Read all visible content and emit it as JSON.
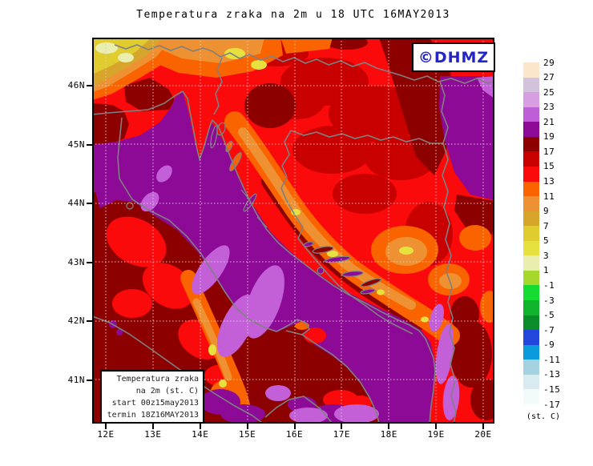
{
  "title": "Temperatura zraka na 2m u 18 UTC 16MAY2013",
  "logo": {
    "text": "©DHMZ",
    "color": "#2424CC"
  },
  "legend_box": {
    "lines": [
      "Temperatura zraka",
      "na 2m (st. C)",
      "start 00z15may2013",
      "termin 18Z16MAY2013"
    ]
  },
  "axes": {
    "lat_ticks": [
      "46N",
      "45N",
      "44N",
      "43N",
      "42N",
      "41N"
    ],
    "lon_ticks": [
      "12E",
      "13E",
      "14E",
      "15E",
      "16E",
      "17E",
      "18E",
      "19E",
      "20E"
    ]
  },
  "colorbar": {
    "unit_label": "(st. C)",
    "tick_values": [
      29,
      27,
      25,
      23,
      21,
      19,
      17,
      15,
      13,
      11,
      9,
      7,
      5,
      3,
      1,
      -1,
      -3,
      -5,
      -7,
      -9,
      -11,
      -13,
      -15,
      -17
    ],
    "colors": [
      "#FBE6CC",
      "#D2C2DC",
      "#D79EE1",
      "#BE5FD7",
      "#8C0A96",
      "#8C0000",
      "#C80000",
      "#FA0A0A",
      "#FA6400",
      "#EE9132",
      "#D7A52B",
      "#E0CC2F",
      "#E6E13E",
      "#E9EDAD",
      "#A5D72D",
      "#16DC32",
      "#0FB42D",
      "#0A8C28",
      "#2346DC",
      "#0A9BDC",
      "#A5D2E1",
      "#D7EBF0",
      "#F2FAFA"
    ]
  },
  "chart_data": {
    "type": "filled_contour_map",
    "title": "Temperatura zraka na 2m u 18 UTC 16MAY2013",
    "variable": "air temperature at 2 m",
    "units": "st. C",
    "contour_interval": 2,
    "levels": [
      -17,
      -15,
      -13,
      -11,
      -9,
      -7,
      -5,
      -3,
      -1,
      1,
      3,
      5,
      7,
      9,
      11,
      13,
      15,
      17,
      19,
      21,
      23,
      25,
      27,
      29
    ],
    "extent": {
      "lon_min": 11.7,
      "lon_max": 20.2,
      "lat_min": 40.3,
      "lat_max": 46.8
    },
    "grid": "dotted graticule every 1 degree",
    "source_label": "DHMZ",
    "key_features": [
      "Adriatic Sea and Po valley mostly 19-21 (purple) with 21-23 (orchid) patches along the Italian and Montenegrin coasts",
      "Dalmatian coastal strip 17-19 (dark red)",
      "Inland Croatia / Bosnia mostly 13-17 (reds) with 9-13 (orange) over Dinaric mountains and small 3-7 (yellow) spots",
      "Alps in NW corner coolest, 3-7 (yellow/gold)",
      "Pannonian NE corner 19-21 (purple) with 21-23 sliver"
    ]
  }
}
